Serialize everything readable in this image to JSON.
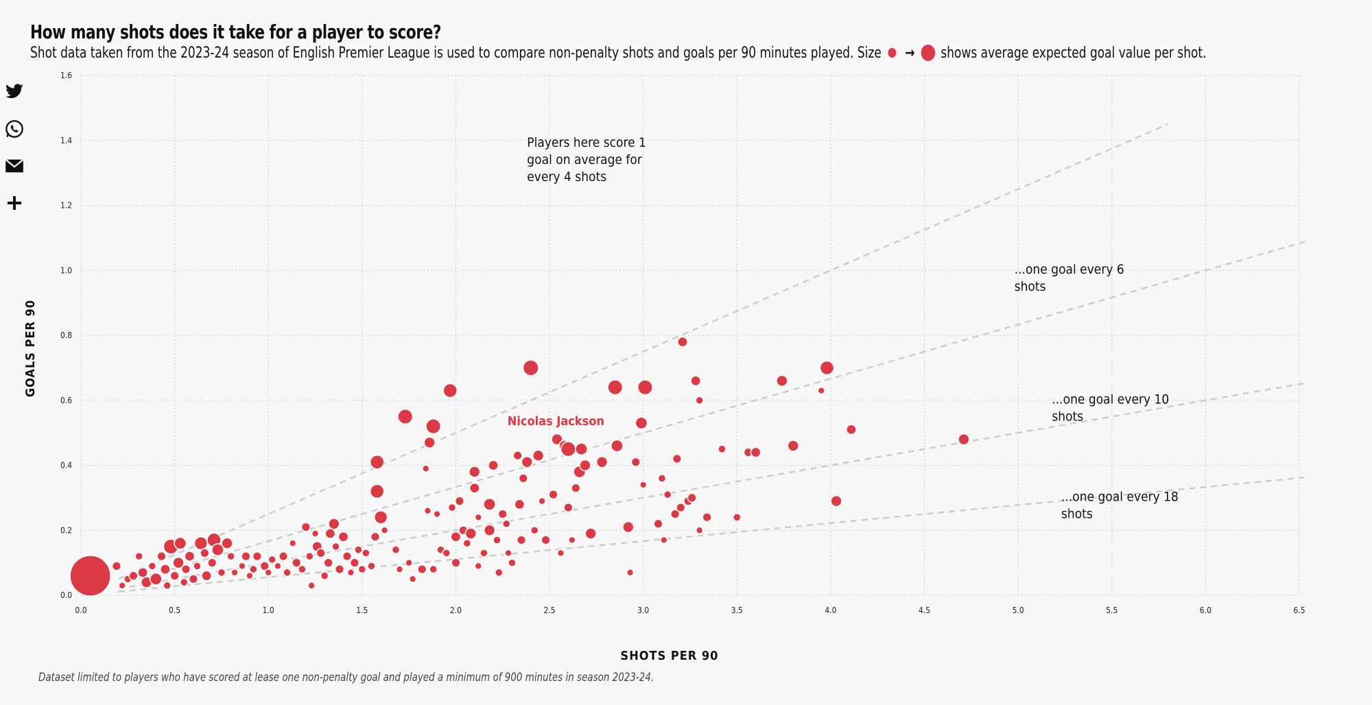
{
  "header": {
    "title": "How many shots does it take for a player to score?",
    "subtitle_before": "Shot data taken from the 2023-24 season of English Premier League is used to compare non-penalty shots and goals per 90 minutes played. Size",
    "subtitle_arrow": "→",
    "subtitle_after": "shows average expected goal value per shot."
  },
  "share": [
    {
      "name": "twitter-icon"
    },
    {
      "name": "whatsapp-icon"
    },
    {
      "name": "email-icon"
    },
    {
      "name": "plus-icon"
    }
  ],
  "footnote": "Dataset limited to players who have scored at lease one non-penalty goal and played a minimum of 900 minutes in season 2023-24.",
  "colors": {
    "point": "#db3a45",
    "point_stroke": "#ffffff",
    "grid": "#c8c8c8",
    "ref_line": "#cccccc",
    "highlight": "#db3a45"
  },
  "chart_data": {
    "type": "scatter",
    "xlabel": "SHOTS PER 90",
    "ylabel": "GOALS PER 90",
    "xlim": [
      0,
      6.5
    ],
    "ylim": [
      0,
      1.6
    ],
    "x_ticks": [
      "0.0",
      "0.5",
      "1.0",
      "1.5",
      "2.0",
      "2.5",
      "3.0",
      "3.5",
      "4.0",
      "4.5",
      "5.0",
      "5.5",
      "6.0",
      "6.5"
    ],
    "y_ticks": [
      "0.0",
      "0.2",
      "0.4",
      "0.6",
      "0.8",
      "1.0",
      "1.2",
      "1.4",
      "1.6"
    ],
    "grid": true,
    "size_encoding": "average expected goal value per shot",
    "reference_lines": [
      {
        "shots_per_goal": 4,
        "x_end": 5.8
      },
      {
        "shots_per_goal": 6,
        "x_end": 6.55
      },
      {
        "shots_per_goal": 10,
        "x_end": 6.55
      },
      {
        "shots_per_goal": 18,
        "x_end": 6.55
      }
    ],
    "annotations": [
      {
        "lines": [
          "Players here score 1",
          "goal on average for",
          "every 4 shots"
        ],
        "x": 2.38,
        "y": 1.38
      },
      {
        "lines": [
          "...one goal every 6",
          "shots"
        ],
        "x": 4.98,
        "y": 0.99
      },
      {
        "lines": [
          "...one goal every 10",
          "shots"
        ],
        "x": 5.18,
        "y": 0.59
      },
      {
        "lines": [
          "...one goal every 18",
          "shots"
        ],
        "x": 5.23,
        "y": 0.29
      }
    ],
    "highlight": {
      "label": "Nicolas Jackson",
      "x": 2.6,
      "y": 0.45
    },
    "points": [
      {
        "x": 0.05,
        "y": 0.06,
        "xg": 0.58
      },
      {
        "x": 0.19,
        "y": 0.09,
        "xg": 0.1
      },
      {
        "x": 0.22,
        "y": 0.03,
        "xg": 0.08
      },
      {
        "x": 0.25,
        "y": 0.05,
        "xg": 0.09
      },
      {
        "x": 0.28,
        "y": 0.06,
        "xg": 0.1
      },
      {
        "x": 0.31,
        "y": 0.12,
        "xg": 0.09
      },
      {
        "x": 0.33,
        "y": 0.07,
        "xg": 0.11
      },
      {
        "x": 0.35,
        "y": 0.04,
        "xg": 0.12
      },
      {
        "x": 0.38,
        "y": 0.09,
        "xg": 0.09
      },
      {
        "x": 0.4,
        "y": 0.05,
        "xg": 0.13
      },
      {
        "x": 0.43,
        "y": 0.12,
        "xg": 0.1
      },
      {
        "x": 0.45,
        "y": 0.08,
        "xg": 0.11
      },
      {
        "x": 0.46,
        "y": 0.03,
        "xg": 0.09
      },
      {
        "x": 0.48,
        "y": 0.15,
        "xg": 0.16
      },
      {
        "x": 0.5,
        "y": 0.06,
        "xg": 0.1
      },
      {
        "x": 0.52,
        "y": 0.1,
        "xg": 0.12
      },
      {
        "x": 0.53,
        "y": 0.16,
        "xg": 0.13
      },
      {
        "x": 0.55,
        "y": 0.04,
        "xg": 0.09
      },
      {
        "x": 0.56,
        "y": 0.08,
        "xg": 0.1
      },
      {
        "x": 0.58,
        "y": 0.12,
        "xg": 0.11
      },
      {
        "x": 0.6,
        "y": 0.05,
        "xg": 0.1
      },
      {
        "x": 0.62,
        "y": 0.09,
        "xg": 0.09
      },
      {
        "x": 0.64,
        "y": 0.16,
        "xg": 0.14
      },
      {
        "x": 0.66,
        "y": 0.13,
        "xg": 0.1
      },
      {
        "x": 0.67,
        "y": 0.06,
        "xg": 0.11
      },
      {
        "x": 0.7,
        "y": 0.1,
        "xg": 0.1
      },
      {
        "x": 0.71,
        "y": 0.17,
        "xg": 0.15
      },
      {
        "x": 0.73,
        "y": 0.14,
        "xg": 0.13
      },
      {
        "x": 0.75,
        "y": 0.07,
        "xg": 0.09
      },
      {
        "x": 0.78,
        "y": 0.16,
        "xg": 0.12
      },
      {
        "x": 0.8,
        "y": 0.12,
        "xg": 0.09
      },
      {
        "x": 0.82,
        "y": 0.07,
        "xg": 0.08
      },
      {
        "x": 0.86,
        "y": 0.09,
        "xg": 0.08
      },
      {
        "x": 0.88,
        "y": 0.12,
        "xg": 0.1
      },
      {
        "x": 0.9,
        "y": 0.06,
        "xg": 0.08
      },
      {
        "x": 0.92,
        "y": 0.08,
        "xg": 0.09
      },
      {
        "x": 0.94,
        "y": 0.12,
        "xg": 0.1
      },
      {
        "x": 0.98,
        "y": 0.09,
        "xg": 0.1
      },
      {
        "x": 1.0,
        "y": 0.07,
        "xg": 0.08
      },
      {
        "x": 1.02,
        "y": 0.11,
        "xg": 0.09
      },
      {
        "x": 1.05,
        "y": 0.09,
        "xg": 0.08
      },
      {
        "x": 1.08,
        "y": 0.12,
        "xg": 0.1
      },
      {
        "x": 1.1,
        "y": 0.07,
        "xg": 0.09
      },
      {
        "x": 1.13,
        "y": 0.16,
        "xg": 0.08
      },
      {
        "x": 1.15,
        "y": 0.1,
        "xg": 0.1
      },
      {
        "x": 1.18,
        "y": 0.08,
        "xg": 0.09
      },
      {
        "x": 1.2,
        "y": 0.21,
        "xg": 0.1
      },
      {
        "x": 1.22,
        "y": 0.12,
        "xg": 0.09
      },
      {
        "x": 1.23,
        "y": 0.03,
        "xg": 0.08
      },
      {
        "x": 1.25,
        "y": 0.19,
        "xg": 0.08
      },
      {
        "x": 1.26,
        "y": 0.15,
        "xg": 0.11
      },
      {
        "x": 1.28,
        "y": 0.13,
        "xg": 0.1
      },
      {
        "x": 1.3,
        "y": 0.06,
        "xg": 0.09
      },
      {
        "x": 1.32,
        "y": 0.1,
        "xg": 0.1
      },
      {
        "x": 1.33,
        "y": 0.19,
        "xg": 0.11
      },
      {
        "x": 1.35,
        "y": 0.22,
        "xg": 0.12
      },
      {
        "x": 1.36,
        "y": 0.15,
        "xg": 0.09
      },
      {
        "x": 1.38,
        "y": 0.08,
        "xg": 0.1
      },
      {
        "x": 1.4,
        "y": 0.18,
        "xg": 0.11
      },
      {
        "x": 1.42,
        "y": 0.12,
        "xg": 0.1
      },
      {
        "x": 1.44,
        "y": 0.07,
        "xg": 0.08
      },
      {
        "x": 1.46,
        "y": 0.1,
        "xg": 0.1
      },
      {
        "x": 1.48,
        "y": 0.14,
        "xg": 0.09
      },
      {
        "x": 1.5,
        "y": 0.08,
        "xg": 0.09
      },
      {
        "x": 1.52,
        "y": 0.13,
        "xg": 0.09
      },
      {
        "x": 1.55,
        "y": 0.09,
        "xg": 0.09
      },
      {
        "x": 1.57,
        "y": 0.18,
        "xg": 0.1
      },
      {
        "x": 1.58,
        "y": 0.41,
        "xg": 0.15
      },
      {
        "x": 1.58,
        "y": 0.32,
        "xg": 0.15
      },
      {
        "x": 1.6,
        "y": 0.24,
        "xg": 0.14
      },
      {
        "x": 1.62,
        "y": 0.2,
        "xg": 0.08
      },
      {
        "x": 1.68,
        "y": 0.14,
        "xg": 0.09
      },
      {
        "x": 1.7,
        "y": 0.08,
        "xg": 0.08
      },
      {
        "x": 1.73,
        "y": 0.55,
        "xg": 0.16
      },
      {
        "x": 1.75,
        "y": 0.1,
        "xg": 0.08
      },
      {
        "x": 1.77,
        "y": 0.05,
        "xg": 0.08
      },
      {
        "x": 1.82,
        "y": 0.08,
        "xg": 0.1
      },
      {
        "x": 1.84,
        "y": 0.39,
        "xg": 0.07
      },
      {
        "x": 1.85,
        "y": 0.26,
        "xg": 0.08
      },
      {
        "x": 1.86,
        "y": 0.47,
        "xg": 0.12
      },
      {
        "x": 1.88,
        "y": 0.52,
        "xg": 0.16
      },
      {
        "x": 1.88,
        "y": 0.08,
        "xg": 0.09
      },
      {
        "x": 1.9,
        "y": 0.25,
        "xg": 0.08
      },
      {
        "x": 1.92,
        "y": 0.14,
        "xg": 0.09
      },
      {
        "x": 1.95,
        "y": 0.13,
        "xg": 0.09
      },
      {
        "x": 1.97,
        "y": 0.63,
        "xg": 0.15
      },
      {
        "x": 1.98,
        "y": 0.27,
        "xg": 0.09
      },
      {
        "x": 2.0,
        "y": 0.1,
        "xg": 0.1
      },
      {
        "x": 2.0,
        "y": 0.18,
        "xg": 0.11
      },
      {
        "x": 2.02,
        "y": 0.29,
        "xg": 0.1
      },
      {
        "x": 2.04,
        "y": 0.2,
        "xg": 0.1
      },
      {
        "x": 2.06,
        "y": 0.16,
        "xg": 0.09
      },
      {
        "x": 2.08,
        "y": 0.19,
        "xg": 0.12
      },
      {
        "x": 2.1,
        "y": 0.38,
        "xg": 0.12
      },
      {
        "x": 2.1,
        "y": 0.33,
        "xg": 0.11
      },
      {
        "x": 2.12,
        "y": 0.09,
        "xg": 0.08
      },
      {
        "x": 2.12,
        "y": 0.24,
        "xg": 0.08
      },
      {
        "x": 2.15,
        "y": 0.13,
        "xg": 0.09
      },
      {
        "x": 2.18,
        "y": 0.28,
        "xg": 0.13
      },
      {
        "x": 2.18,
        "y": 0.2,
        "xg": 0.12
      },
      {
        "x": 2.2,
        "y": 0.4,
        "xg": 0.11
      },
      {
        "x": 2.22,
        "y": 0.17,
        "xg": 0.09
      },
      {
        "x": 2.23,
        "y": 0.07,
        "xg": 0.09
      },
      {
        "x": 2.25,
        "y": 0.25,
        "xg": 0.1
      },
      {
        "x": 2.27,
        "y": 0.22,
        "xg": 0.09
      },
      {
        "x": 2.28,
        "y": 0.13,
        "xg": 0.08
      },
      {
        "x": 2.3,
        "y": 0.1,
        "xg": 0.09
      },
      {
        "x": 2.33,
        "y": 0.43,
        "xg": 0.1
      },
      {
        "x": 2.34,
        "y": 0.28,
        "xg": 0.11
      },
      {
        "x": 2.35,
        "y": 0.17,
        "xg": 0.1
      },
      {
        "x": 2.36,
        "y": 0.36,
        "xg": 0.1
      },
      {
        "x": 2.38,
        "y": 0.41,
        "xg": 0.12
      },
      {
        "x": 2.4,
        "y": 0.7,
        "xg": 0.17
      },
      {
        "x": 2.42,
        "y": 0.2,
        "xg": 0.09
      },
      {
        "x": 2.44,
        "y": 0.43,
        "xg": 0.12
      },
      {
        "x": 2.46,
        "y": 0.29,
        "xg": 0.08
      },
      {
        "x": 2.48,
        "y": 0.17,
        "xg": 0.1
      },
      {
        "x": 2.52,
        "y": 0.31,
        "xg": 0.1
      },
      {
        "x": 2.54,
        "y": 0.48,
        "xg": 0.12
      },
      {
        "x": 2.56,
        "y": 0.13,
        "xg": 0.08
      },
      {
        "x": 2.58,
        "y": 0.46,
        "xg": 0.12
      },
      {
        "x": 2.6,
        "y": 0.45,
        "xg": 0.16
      },
      {
        "x": 2.6,
        "y": 0.27,
        "xg": 0.1
      },
      {
        "x": 2.62,
        "y": 0.17,
        "xg": 0.08
      },
      {
        "x": 2.64,
        "y": 0.33,
        "xg": 0.1
      },
      {
        "x": 2.66,
        "y": 0.38,
        "xg": 0.13
      },
      {
        "x": 2.67,
        "y": 0.45,
        "xg": 0.13
      },
      {
        "x": 2.69,
        "y": 0.4,
        "xg": 0.12
      },
      {
        "x": 2.72,
        "y": 0.19,
        "xg": 0.12
      },
      {
        "x": 2.78,
        "y": 0.41,
        "xg": 0.12
      },
      {
        "x": 2.85,
        "y": 0.64,
        "xg": 0.16
      },
      {
        "x": 2.86,
        "y": 0.46,
        "xg": 0.13
      },
      {
        "x": 2.92,
        "y": 0.21,
        "xg": 0.12
      },
      {
        "x": 2.93,
        "y": 0.07,
        "xg": 0.08
      },
      {
        "x": 2.96,
        "y": 0.41,
        "xg": 0.1
      },
      {
        "x": 2.99,
        "y": 0.53,
        "xg": 0.13
      },
      {
        "x": 3.0,
        "y": 0.34,
        "xg": 0.08
      },
      {
        "x": 3.01,
        "y": 0.64,
        "xg": 0.16
      },
      {
        "x": 3.08,
        "y": 0.22,
        "xg": 0.1
      },
      {
        "x": 3.1,
        "y": 0.36,
        "xg": 0.09
      },
      {
        "x": 3.11,
        "y": 0.17,
        "xg": 0.07
      },
      {
        "x": 3.13,
        "y": 0.31,
        "xg": 0.09
      },
      {
        "x": 3.17,
        "y": 0.25,
        "xg": 0.1
      },
      {
        "x": 3.18,
        "y": 0.42,
        "xg": 0.1
      },
      {
        "x": 3.2,
        "y": 0.27,
        "xg": 0.1
      },
      {
        "x": 3.21,
        "y": 0.78,
        "xg": 0.11
      },
      {
        "x": 3.24,
        "y": 0.29,
        "xg": 0.1
      },
      {
        "x": 3.26,
        "y": 0.3,
        "xg": 0.1
      },
      {
        "x": 3.28,
        "y": 0.66,
        "xg": 0.11
      },
      {
        "x": 3.3,
        "y": 0.6,
        "xg": 0.09
      },
      {
        "x": 3.3,
        "y": 0.2,
        "xg": 0.08
      },
      {
        "x": 3.34,
        "y": 0.24,
        "xg": 0.1
      },
      {
        "x": 3.42,
        "y": 0.45,
        "xg": 0.09
      },
      {
        "x": 3.5,
        "y": 0.24,
        "xg": 0.09
      },
      {
        "x": 3.56,
        "y": 0.44,
        "xg": 0.1
      },
      {
        "x": 3.6,
        "y": 0.44,
        "xg": 0.11
      },
      {
        "x": 3.74,
        "y": 0.66,
        "xg": 0.12
      },
      {
        "x": 3.8,
        "y": 0.46,
        "xg": 0.12
      },
      {
        "x": 3.95,
        "y": 0.63,
        "xg": 0.08
      },
      {
        "x": 3.98,
        "y": 0.7,
        "xg": 0.15
      },
      {
        "x": 4.03,
        "y": 0.29,
        "xg": 0.12
      },
      {
        "x": 4.11,
        "y": 0.51,
        "xg": 0.11
      },
      {
        "x": 4.71,
        "y": 0.48,
        "xg": 0.12
      }
    ]
  }
}
